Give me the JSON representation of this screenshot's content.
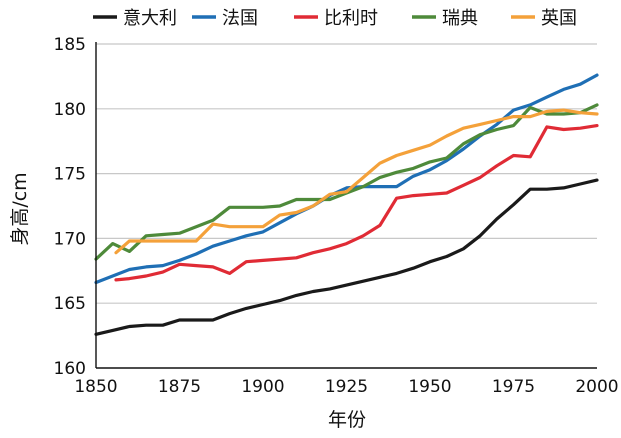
{
  "chart_data": {
    "type": "line",
    "xlabel": "年份",
    "ylabel": "身高/cm",
    "xlim": [
      1850,
      2000
    ],
    "ylim": [
      160,
      185
    ],
    "xticks": [
      1850,
      1875,
      1900,
      1925,
      1950,
      1975,
      2000
    ],
    "yticks": [
      160,
      165,
      170,
      175,
      180,
      185
    ],
    "grid": "horizontal",
    "legend": "top",
    "series": [
      {
        "name": "意大利",
        "color": "#1a1a1a",
        "x": [
          1850,
          1855,
          1860,
          1865,
          1870,
          1875,
          1880,
          1885,
          1890,
          1895,
          1900,
          1905,
          1910,
          1915,
          1920,
          1925,
          1930,
          1935,
          1940,
          1945,
          1950,
          1955,
          1960,
          1965,
          1970,
          1975,
          1980,
          1985,
          1990,
          1995,
          2000
        ],
        "y": [
          162.6,
          162.9,
          163.2,
          163.3,
          163.3,
          163.7,
          163.7,
          163.7,
          164.2,
          164.6,
          164.9,
          165.2,
          165.6,
          165.9,
          166.1,
          166.4,
          166.7,
          167.0,
          167.3,
          167.7,
          168.2,
          168.6,
          169.2,
          170.2,
          171.5,
          172.6,
          173.8,
          173.8,
          173.9,
          174.2,
          174.5
        ]
      },
      {
        "name": "法国",
        "color": "#1f6fb5",
        "x": [
          1850,
          1855,
          1860,
          1865,
          1870,
          1875,
          1880,
          1885,
          1890,
          1895,
          1900,
          1905,
          1910,
          1915,
          1920,
          1925,
          1930,
          1935,
          1940,
          1945,
          1950,
          1955,
          1960,
          1965,
          1970,
          1975,
          1980,
          1985,
          1990,
          1995,
          2000
        ],
        "y": [
          166.6,
          167.1,
          167.6,
          167.8,
          167.9,
          168.3,
          168.8,
          169.4,
          169.8,
          170.2,
          170.5,
          171.2,
          171.9,
          172.5,
          173.3,
          173.9,
          174.0,
          174.0,
          174.0,
          174.8,
          175.3,
          176.0,
          176.9,
          177.9,
          178.8,
          179.9,
          180.3,
          180.9,
          181.5,
          181.9,
          182.6
        ]
      },
      {
        "name": "比利时",
        "color": "#e02b35",
        "x": [
          1856,
          1860,
          1865,
          1870,
          1875,
          1880,
          1885,
          1890,
          1895,
          1900,
          1905,
          1910,
          1915,
          1920,
          1925,
          1930,
          1935,
          1940,
          1945,
          1950,
          1955,
          1960,
          1965,
          1970,
          1975,
          1980,
          1985,
          1990,
          1995,
          2000
        ],
        "y": [
          166.8,
          166.9,
          167.1,
          167.4,
          168.0,
          167.9,
          167.8,
          167.3,
          168.2,
          168.3,
          168.4,
          168.5,
          168.9,
          169.2,
          169.6,
          170.2,
          171.0,
          173.1,
          173.3,
          173.4,
          173.5,
          174.1,
          174.7,
          175.6,
          176.4,
          176.3,
          178.6,
          178.4,
          178.5,
          178.7
        ]
      },
      {
        "name": "瑞典",
        "color": "#4e8a3a",
        "x": [
          1850,
          1855,
          1860,
          1865,
          1870,
          1875,
          1880,
          1885,
          1890,
          1895,
          1900,
          1905,
          1910,
          1915,
          1920,
          1925,
          1930,
          1935,
          1940,
          1945,
          1950,
          1955,
          1960,
          1965,
          1970,
          1975,
          1980,
          1985,
          1990,
          1995,
          2000
        ],
        "y": [
          168.4,
          169.6,
          169.0,
          170.2,
          170.3,
          170.4,
          170.9,
          171.4,
          172.4,
          172.4,
          172.4,
          172.5,
          173.0,
          173.0,
          173.0,
          173.5,
          174.0,
          174.7,
          175.1,
          175.4,
          175.9,
          176.2,
          177.3,
          178.0,
          178.4,
          178.7,
          180.1,
          179.6,
          179.6,
          179.7,
          180.3
        ]
      },
      {
        "name": "英国",
        "color": "#f4a13a",
        "x": [
          1856,
          1860,
          1865,
          1870,
          1875,
          1880,
          1885,
          1890,
          1895,
          1900,
          1905,
          1910,
          1915,
          1920,
          1925,
          1930,
          1935,
          1940,
          1945,
          1950,
          1955,
          1960,
          1965,
          1970,
          1975,
          1980,
          1985,
          1990,
          1995,
          2000
        ],
        "y": [
          168.9,
          169.8,
          169.8,
          169.8,
          169.8,
          169.8,
          171.1,
          170.9,
          170.9,
          170.9,
          171.8,
          172.0,
          172.5,
          173.4,
          173.6,
          174.7,
          175.8,
          176.4,
          176.8,
          177.2,
          177.9,
          178.5,
          178.8,
          179.1,
          179.4,
          179.4,
          179.8,
          179.9,
          179.7,
          179.6
        ]
      }
    ]
  }
}
